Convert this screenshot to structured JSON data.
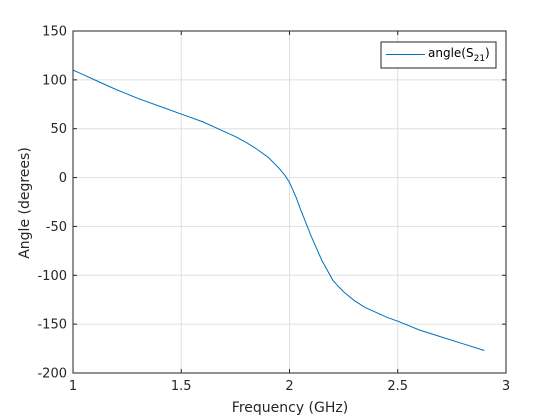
{
  "chart_data": {
    "type": "line",
    "xlabel": "Frequency (GHz)",
    "ylabel": "Angle (degrees)",
    "xlim": [
      1,
      3
    ],
    "ylim": [
      -200,
      150
    ],
    "xticks": [
      "1",
      "1.5",
      "2",
      "2.5",
      "3"
    ],
    "yticks": [
      "150",
      "100",
      "50",
      "0",
      "-50",
      "-100",
      "-150",
      "-200"
    ],
    "grid": true,
    "legend_position": "top-right",
    "legend": {
      "main": "angle(S",
      "sub": "21",
      "close": ")"
    },
    "series": [
      {
        "name": "angle(S21)",
        "color": "#0072BD",
        "x": [
          1.0,
          1.05,
          1.1,
          1.2,
          1.3,
          1.4,
          1.5,
          1.6,
          1.7,
          1.75,
          1.8,
          1.85,
          1.9,
          1.95,
          1.98,
          2.0,
          2.03,
          2.05,
          2.1,
          2.15,
          2.2,
          2.22,
          2.25,
          2.3,
          2.35,
          2.4,
          2.45,
          2.5,
          2.6,
          2.7,
          2.8,
          2.9
        ],
        "y": [
          110,
          105,
          100,
          90,
          81,
          73,
          65,
          57,
          47,
          42,
          36,
          29,
          21,
          10,
          2,
          -5,
          -20,
          -32,
          -60,
          -85,
          -105,
          -110,
          -117,
          -126,
          -133,
          -138,
          -143,
          -147,
          -156,
          -163,
          -170,
          -177
        ]
      }
    ]
  }
}
